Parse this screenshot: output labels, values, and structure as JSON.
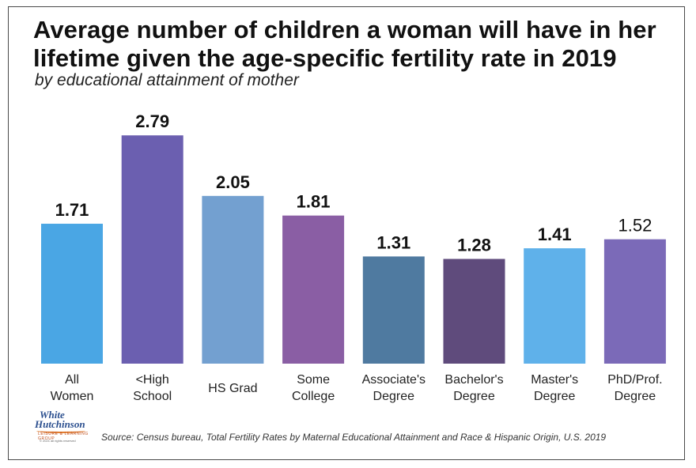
{
  "title_line1": "Average number of children a woman will have in her",
  "title_line2": "lifetime given the age-specific fertility rate in 2019",
  "subtitle": "by educational attainment of mother",
  "source": "Source: Census bureau, Total Fertility Rates by Maternal Educational Attainment and Race & Hispanic Origin, U.S. 2019",
  "logo": {
    "line1": "White",
    "line2": "Hutchinson",
    "line3": "LEISURE & LEARNING GROUP",
    "line4": "© 2021 all rights reserved"
  },
  "chart_data": {
    "type": "bar",
    "title": "Average number of children a woman will have in her lifetime given the age-specific fertility rate in 2019",
    "subtitle": "by educational attainment of mother",
    "xlabel": "",
    "ylabel": "",
    "ylim": [
      0,
      3
    ],
    "grid": false,
    "categories": [
      [
        "All",
        "Women"
      ],
      [
        "<High",
        "School"
      ],
      [
        "HS Grad"
      ],
      [
        "Some",
        "College"
      ],
      [
        "Associate's",
        "Degree"
      ],
      [
        "Bachelor's",
        "Degree"
      ],
      [
        "Master's",
        "Degree"
      ],
      [
        "PhD/Prof.",
        "Degree"
      ]
    ],
    "values": [
      1.71,
      2.79,
      2.05,
      1.81,
      1.31,
      1.28,
      1.41,
      1.52
    ],
    "value_labels": [
      "1.71",
      "2.79",
      "2.05",
      "1.81",
      "1.31",
      "1.28",
      "1.41",
      "1.52"
    ],
    "colors": [
      "#4aa6e4",
      "#6b5fb0",
      "#73a0d0",
      "#8a5ea4",
      "#4f7aa0",
      "#5f4b7c",
      "#5fb1ea",
      "#7b6ab8"
    ]
  }
}
